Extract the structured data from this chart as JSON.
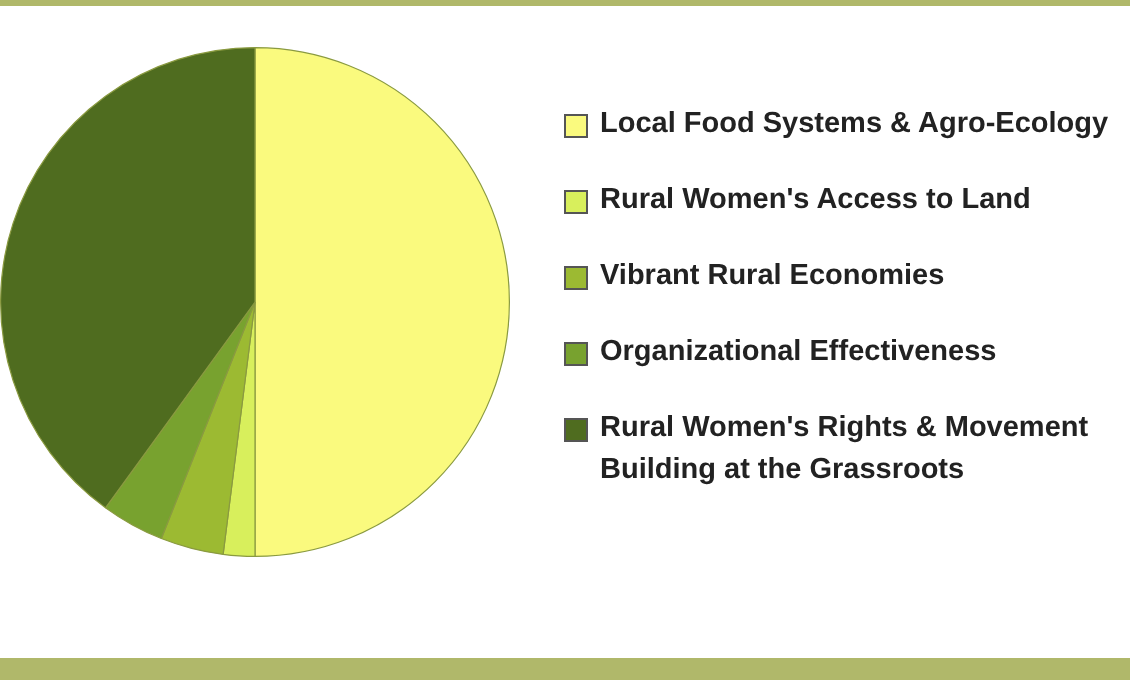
{
  "chart_data": {
    "type": "pie",
    "categories": [
      "Local Food Systems & Agro-Ecology",
      "Rural Women's Access to Land",
      "Vibrant Rural Economies",
      "Organizational Effectiveness",
      "Rural Women's Rights & Movement Building at the Grassroots"
    ],
    "values": [
      50,
      2,
      4,
      4,
      40
    ],
    "colors": [
      "#fafa7e",
      "#d8ef5c",
      "#9cba32",
      "#78a22f",
      "#4f6c1f"
    ],
    "legend": "right"
  }
}
